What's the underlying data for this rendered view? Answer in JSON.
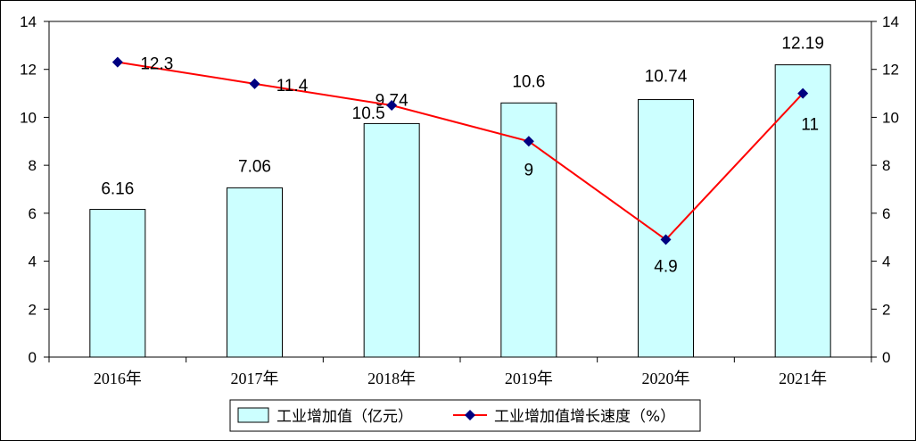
{
  "chart_data": {
    "type": "bar",
    "categories": [
      "2016年",
      "2017年",
      "2018年",
      "2019年",
      "2020年",
      "2021年"
    ],
    "series": [
      {
        "name": "工业增加值（亿元）",
        "type": "bar",
        "axis": "left",
        "values": [
          6.16,
          7.06,
          9.74,
          10.6,
          10.74,
          12.19
        ],
        "labels": [
          "6.16",
          "7.06",
          "9.74",
          "10.6",
          "10.74",
          "12.19"
        ],
        "color": "#ccffff",
        "stroke": "#000000"
      },
      {
        "name": "工业增加值增长速度（%）",
        "type": "line",
        "axis": "right",
        "values": [
          12.3,
          11.4,
          10.5,
          9,
          4.9,
          11
        ],
        "labels": [
          "12.3",
          "11.4",
          "10.5",
          "9",
          "4.9",
          "11"
        ],
        "color": "#ff0000",
        "marker_color": "#000080"
      }
    ],
    "ylim": [
      0,
      14
    ],
    "y2lim": [
      0,
      14
    ],
    "yticks": [
      "0",
      "2",
      "4",
      "6",
      "8",
      "10",
      "12",
      "14"
    ],
    "y2ticks": [
      "0",
      "2",
      "4",
      "6",
      "8",
      "10",
      "12",
      "14"
    ],
    "legend_position": "bottom",
    "grid": false
  }
}
